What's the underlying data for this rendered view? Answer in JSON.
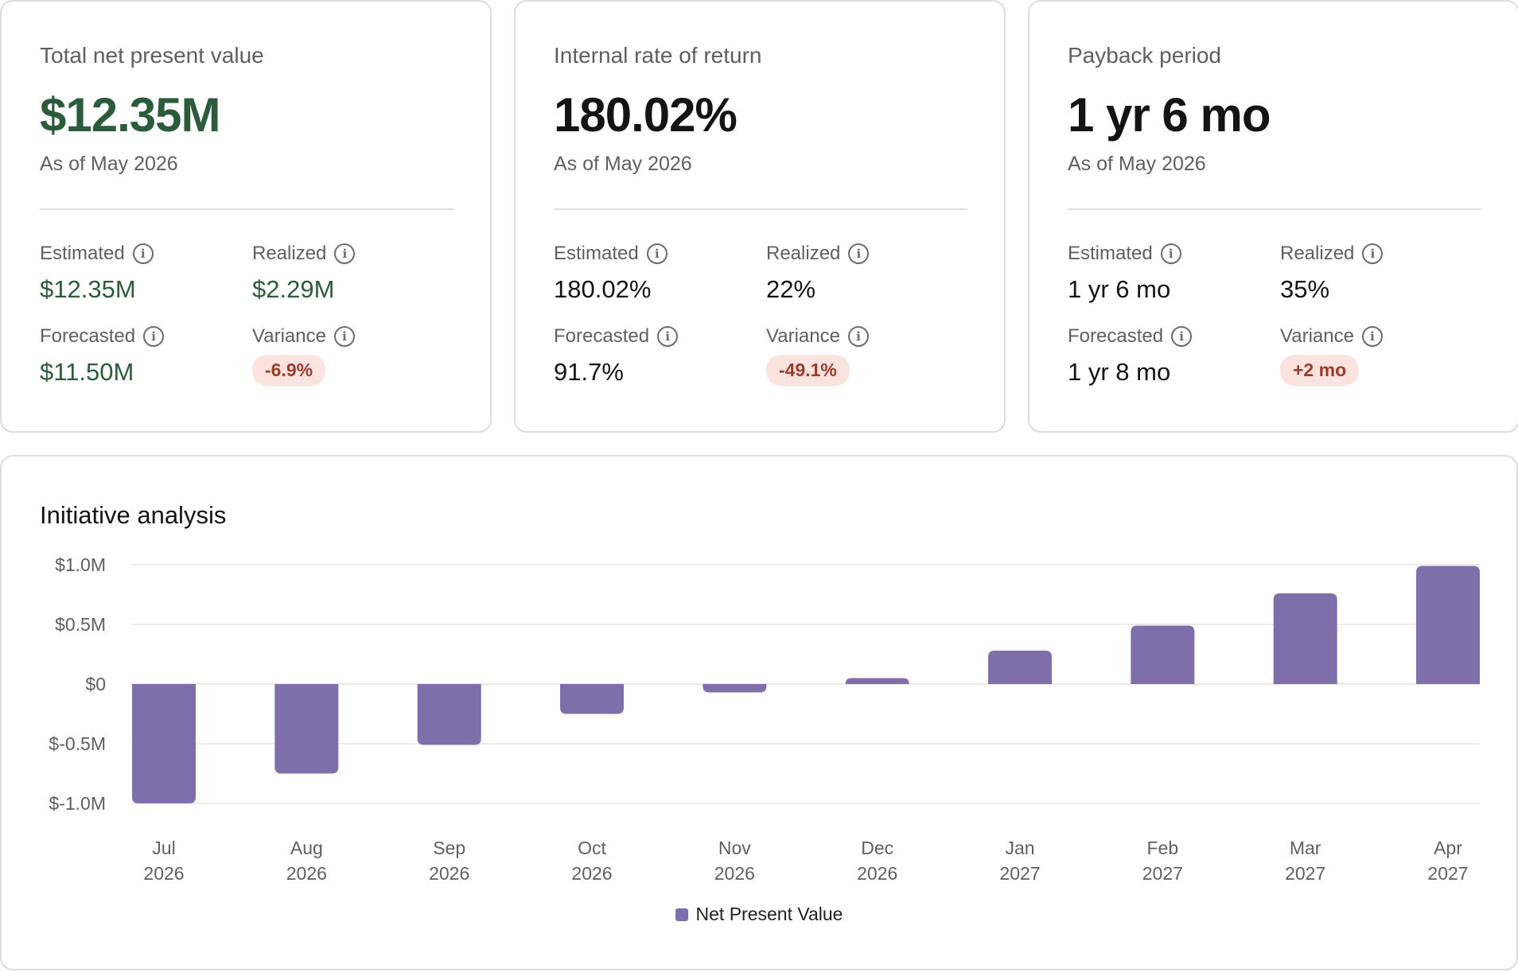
{
  "cards": [
    {
      "title": "Total net present value",
      "value": "$12.35M",
      "value_tone": "green",
      "as_of": "As of May 2026",
      "estimated_label": "Estimated",
      "estimated_value": "$12.35M",
      "realized_label": "Realized",
      "realized_value": "$2.29M",
      "forecasted_label": "Forecasted",
      "forecasted_value": "$11.50M",
      "variance_label": "Variance",
      "variance_value": "-6.9%"
    },
    {
      "title": "Internal rate of return",
      "value": "180.02%",
      "value_tone": "dark",
      "as_of": "As of May 2026",
      "estimated_label": "Estimated",
      "estimated_value": "180.02%",
      "realized_label": "Realized",
      "realized_value": "22%",
      "forecasted_label": "Forecasted",
      "forecasted_value": "91.7%",
      "variance_label": "Variance",
      "variance_value": "-49.1%"
    },
    {
      "title": "Payback period",
      "value": "1 yr 6 mo",
      "value_tone": "dark",
      "as_of": "As of May 2026",
      "estimated_label": "Estimated",
      "estimated_value": "1 yr 6 mo",
      "realized_label": "Realized",
      "realized_value": "35%",
      "forecasted_label": "Forecasted",
      "forecasted_value": "1 yr 8 mo",
      "variance_label": "Variance",
      "variance_value": "+2 mo"
    }
  ],
  "info_icon": "i",
  "colors": {
    "green": "#2c5b3b",
    "bar": "#7e6fab",
    "badge_bg": "#fbe4e0",
    "badge_text": "#9c3a2c"
  },
  "chart_title": "Initiative analysis",
  "chart_data": {
    "type": "bar",
    "categories": [
      [
        "Jul",
        "2026"
      ],
      [
        "Aug",
        "2026"
      ],
      [
        "Sep",
        "2026"
      ],
      [
        "Oct",
        "2026"
      ],
      [
        "Nov",
        "2026"
      ],
      [
        "Dec",
        "2026"
      ],
      [
        "Jan",
        "2027"
      ],
      [
        "Feb",
        "2027"
      ],
      [
        "Mar",
        "2027"
      ],
      [
        "Apr",
        "2027"
      ]
    ],
    "series": [
      {
        "name": "Net Present Value",
        "values": [
          -1.0,
          -0.75,
          -0.51,
          -0.25,
          -0.07,
          0.05,
          0.28,
          0.49,
          0.76,
          0.99
        ]
      }
    ],
    "ylim": [
      -1.0,
      1.0
    ],
    "yticks": [
      1.0,
      0.5,
      0,
      -0.5,
      -1.0
    ],
    "ytick_labels": [
      "$1.0M",
      "$0.5M",
      "$0",
      "$-0.5M",
      "$-1.0M"
    ],
    "grid": true,
    "legend": "bottom-center"
  }
}
